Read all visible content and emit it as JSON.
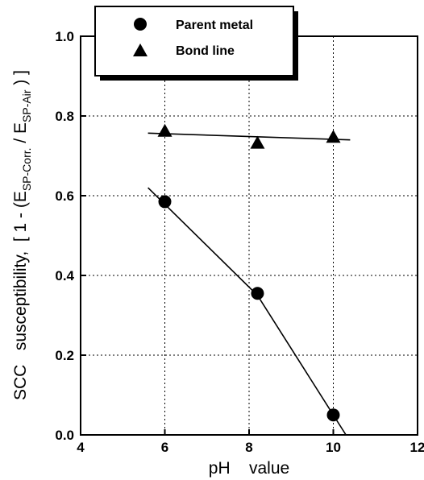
{
  "chart_data": {
    "type": "scatter",
    "xlabel": "pH    value",
    "ylabel": {
      "prefix": "SCC   susceptibility,  [ 1 - (E",
      "sub1": "SP-Corr.",
      "mid": " / E",
      "sub2": "SP-Air",
      "suffix": " ) ]"
    },
    "xlim": [
      4,
      12
    ],
    "ylim": [
      0,
      1.0
    ],
    "x_ticks": [
      4,
      6,
      8,
      10,
      12
    ],
    "x_tick_labels": [
      "4",
      "6",
      "8",
      "10",
      "12"
    ],
    "y_ticks": [
      0,
      0.2,
      0.4,
      0.6,
      0.8,
      1.0
    ],
    "y_tick_labels": [
      "0.0",
      "0.2",
      "0.4",
      "0.6",
      "0.8",
      "1.0"
    ],
    "grid": "dotted",
    "legend_position": "top-left",
    "series": [
      {
        "name": "Parent metal",
        "marker": "circle",
        "x": [
          6,
          8.2,
          10
        ],
        "y": [
          0.585,
          0.355,
          0.05
        ],
        "fit": [
          [
            5.6,
            0.62
          ],
          [
            8.2,
            0.35
          ],
          [
            10.3,
            0.0
          ]
        ]
      },
      {
        "name": "Bond line",
        "marker": "triangle",
        "x": [
          6,
          8.2,
          10
        ],
        "y": [
          0.76,
          0.73,
          0.745
        ],
        "fit": [
          [
            5.6,
            0.757
          ],
          [
            10.4,
            0.74
          ]
        ]
      }
    ],
    "colors": {
      "ink": "#000000",
      "background": "#ffffff"
    }
  }
}
